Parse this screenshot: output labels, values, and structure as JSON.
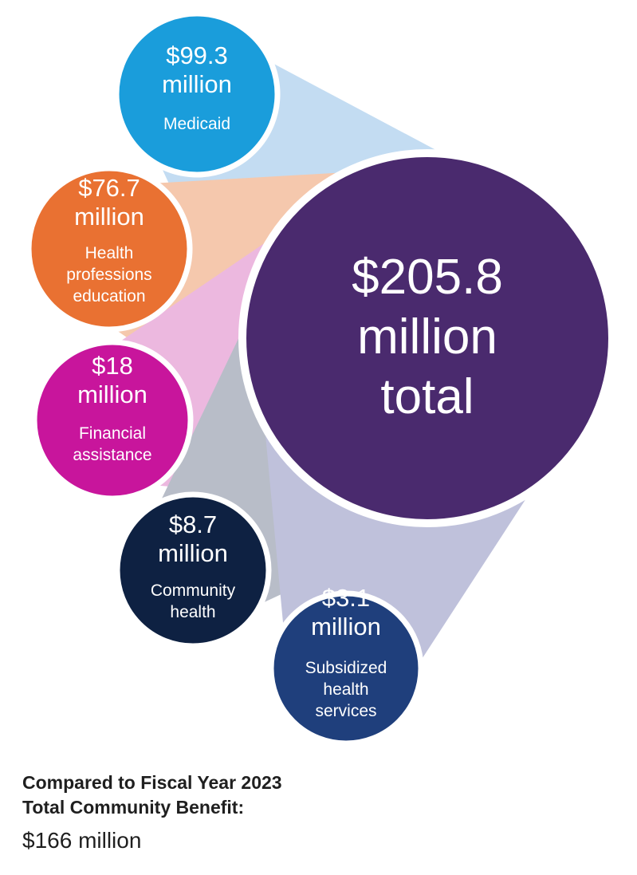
{
  "chart_data": {
    "type": "bubble",
    "unit": "million",
    "total": {
      "value": 205.8,
      "lines": [
        "$205.8",
        "million",
        "total"
      ],
      "color": "#4a2a6e"
    },
    "items": [
      {
        "value": 99.3,
        "lines": [
          "$99.3",
          "million"
        ],
        "label_lines": [
          "Medicaid"
        ],
        "color": "#1a9ddb",
        "connector_color": "#c3dcf2"
      },
      {
        "value": 76.7,
        "lines": [
          "$76.7",
          "million"
        ],
        "label_lines": [
          "Health",
          "professions",
          "education"
        ],
        "color": "#e97132",
        "connector_color": "#f5c8ad"
      },
      {
        "value": 18,
        "lines": [
          "$18",
          "million"
        ],
        "label_lines": [
          "Financial",
          "assistance"
        ],
        "color": "#c8159c",
        "connector_color": "#ecb8df"
      },
      {
        "value": 8.7,
        "lines": [
          "$8.7",
          "million"
        ],
        "label_lines": [
          "Community",
          "health"
        ],
        "color": "#0e2142",
        "connector_color": "#b8bdc8"
      },
      {
        "value": 3.1,
        "lines": [
          "$3.1",
          "million"
        ],
        "label_lines": [
          "Subsidized",
          "health",
          "services"
        ],
        "color": "#1f3f7c",
        "connector_color": "#bfc1db"
      }
    ]
  },
  "comparison": {
    "heading_line1": "Compared to Fiscal Year 2023",
    "heading_line2": "Total Community Benefit:",
    "value": "$166 million"
  }
}
